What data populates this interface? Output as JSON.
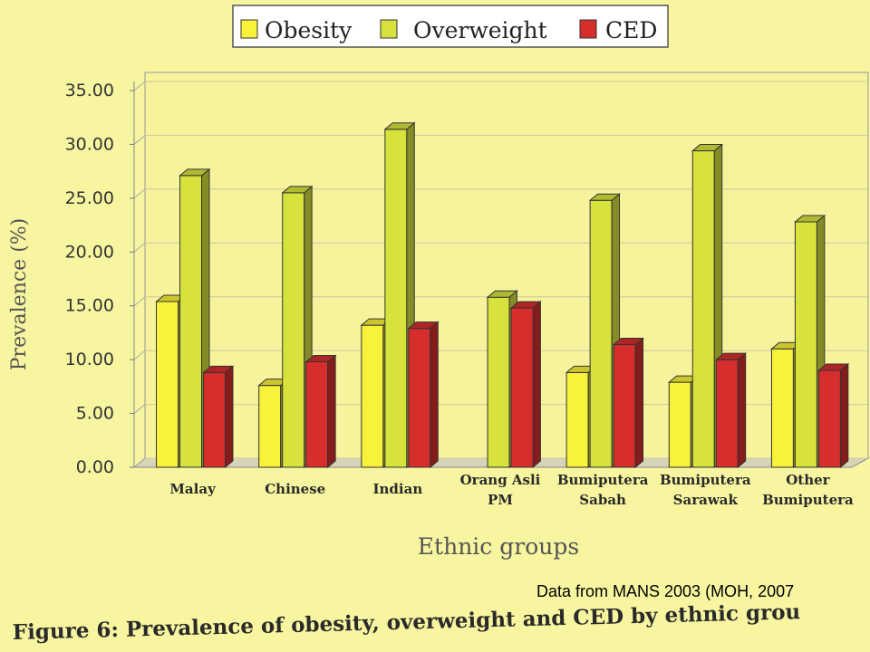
{
  "chart_data": {
    "type": "bar",
    "title": "Figure 6: Prevalence of obesity, overweight and CED by ethnic grou",
    "xlabel": "Ethnic groups",
    "ylabel": "Prevalence (%)",
    "ylim": [
      0,
      35
    ],
    "yticks": [
      "0.00",
      "5.00",
      "10.00",
      "15.00",
      "20.00",
      "25.00",
      "30.00",
      "35.00"
    ],
    "categories": [
      [
        "Malay"
      ],
      [
        "Chinese"
      ],
      [
        "Indian"
      ],
      [
        "Orang Asli",
        "PM"
      ],
      [
        "Bumiputera",
        "Sabah"
      ],
      [
        "Bumiputera",
        "Sarawak"
      ],
      [
        "Other",
        "Bumiputera"
      ]
    ],
    "series": [
      {
        "name": "Obesity",
        "color": "#f8f23a",
        "values": [
          15.4,
          7.6,
          13.2,
          0,
          8.8,
          7.9,
          11.0
        ]
      },
      {
        "name": "Overweight",
        "color": "#d7e23c",
        "values": [
          27.1,
          25.5,
          31.4,
          15.8,
          24.8,
          29.4,
          22.8
        ]
      },
      {
        "name": "CED",
        "color": "#d62d2d",
        "values": [
          8.8,
          9.8,
          12.9,
          14.8,
          11.4,
          10.0,
          9.0
        ]
      }
    ],
    "legend_position": "top-center",
    "source_note": "Data from MANS 2003 (MOH, 2007"
  }
}
